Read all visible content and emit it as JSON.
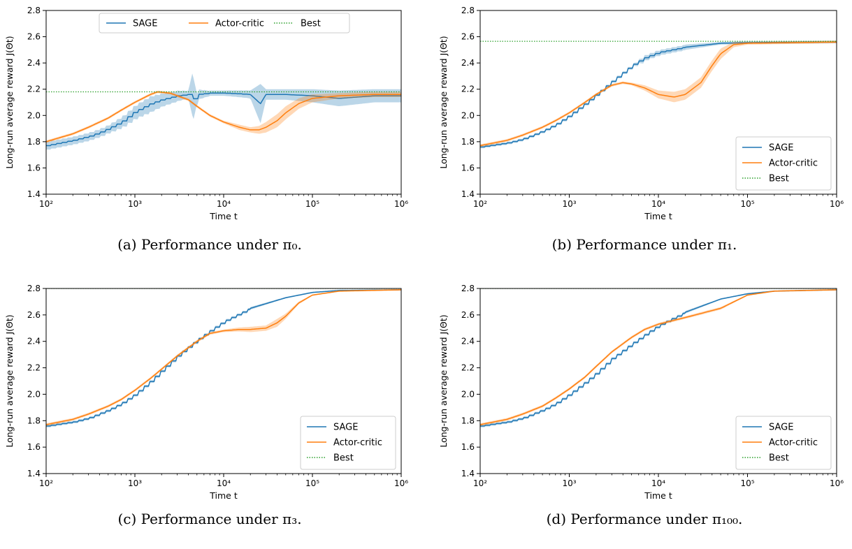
{
  "chart_data": [
    {
      "type": "line",
      "caption": "(a) Performance under π₀.",
      "xlabel": "Time t",
      "ylabel": "Long-run average reward J(Θt)",
      "xscale": "log",
      "xlim": [
        100,
        1000000
      ],
      "ylim": [
        1.4,
        2.8
      ],
      "xticks": [
        "10²",
        "10³",
        "10⁴",
        "10⁵",
        "10⁶"
      ],
      "yticks": [
        "1.4",
        "1.6",
        "1.8",
        "2.0",
        "2.2",
        "2.4",
        "2.6",
        "2.8"
      ],
      "legend_position": "top-center",
      "legend_layout": "horizontal",
      "series": [
        {
          "name": "SAGE",
          "color": "#1f77b4",
          "step": true,
          "x": [
            100,
            200,
            300,
            400,
            500,
            700,
            1000,
            1500,
            2000,
            3000,
            4000,
            4500,
            5000,
            7000,
            10000,
            20000,
            26000,
            30000,
            50000,
            100000,
            200000,
            500000,
            1000000
          ],
          "y": [
            1.77,
            1.81,
            1.84,
            1.87,
            1.9,
            1.95,
            2.03,
            2.09,
            2.12,
            2.15,
            2.16,
            2.12,
            2.16,
            2.17,
            2.17,
            2.16,
            2.09,
            2.16,
            2.16,
            2.15,
            2.13,
            2.15,
            2.15
          ],
          "band": [
            0.03,
            0.03,
            0.03,
            0.03,
            0.03,
            0.04,
            0.05,
            0.06,
            0.05,
            0.04,
            0.03,
            0.18,
            0.04,
            0.02,
            0.02,
            0.03,
            0.15,
            0.04,
            0.04,
            0.05,
            0.06,
            0.05,
            0.05
          ]
        },
        {
          "name": "Actor-critic",
          "color": "#ff7f0e",
          "x": [
            100,
            200,
            300,
            500,
            700,
            1000,
            1500,
            1800,
            2500,
            3000,
            4000,
            5000,
            7000,
            10000,
            15000,
            20000,
            25000,
            30000,
            40000,
            50000,
            70000,
            100000,
            200000,
            500000,
            1000000
          ],
          "y": [
            1.8,
            1.86,
            1.91,
            1.98,
            2.04,
            2.1,
            2.16,
            2.18,
            2.17,
            2.15,
            2.12,
            2.07,
            2.0,
            1.95,
            1.91,
            1.89,
            1.89,
            1.91,
            1.96,
            2.02,
            2.09,
            2.13,
            2.15,
            2.16,
            2.16
          ],
          "band": [
            0.01,
            0.01,
            0.01,
            0.01,
            0.01,
            0.01,
            0.01,
            0.01,
            0.01,
            0.01,
            0.01,
            0.01,
            0.01,
            0.01,
            0.02,
            0.02,
            0.03,
            0.04,
            0.05,
            0.05,
            0.04,
            0.03,
            0.02,
            0.02,
            0.02
          ]
        },
        {
          "name": "Best",
          "color": "#2ca02c",
          "style": "dotted",
          "y_constant": 2.18
        }
      ]
    },
    {
      "type": "line",
      "caption": "(b) Performance under π₁.",
      "xlabel": "Time t",
      "ylabel": "Long-run average reward J(Θt)",
      "xscale": "log",
      "xlim": [
        100,
        1000000
      ],
      "ylim": [
        1.4,
        2.8
      ],
      "xticks": [
        "10²",
        "10³",
        "10⁴",
        "10⁵",
        "10⁶"
      ],
      "yticks": [
        "1.4",
        "1.6",
        "1.8",
        "2.0",
        "2.2",
        "2.4",
        "2.6",
        "2.8"
      ],
      "legend_position": "lower-right",
      "legend_layout": "vertical",
      "series": [
        {
          "name": "SAGE",
          "color": "#1f77b4",
          "step": true,
          "x": [
            100,
            200,
            300,
            500,
            700,
            1000,
            1500,
            2000,
            3000,
            5000,
            7000,
            10000,
            20000,
            50000,
            100000,
            1000000
          ],
          "y": [
            1.76,
            1.79,
            1.82,
            1.88,
            1.93,
            2.0,
            2.09,
            2.16,
            2.26,
            2.38,
            2.44,
            2.48,
            2.52,
            2.55,
            2.555,
            2.56
          ],
          "band": [
            0.01,
            0.01,
            0.01,
            0.01,
            0.01,
            0.01,
            0.01,
            0.01,
            0.01,
            0.01,
            0.02,
            0.02,
            0.02,
            0.01,
            0.01,
            0.01
          ]
        },
        {
          "name": "Actor-critic",
          "color": "#ff7f0e",
          "x": [
            100,
            200,
            300,
            500,
            700,
            1000,
            1500,
            2000,
            3000,
            4000,
            5000,
            7000,
            10000,
            15000,
            20000,
            30000,
            40000,
            50000,
            70000,
            100000,
            1000000
          ],
          "y": [
            1.77,
            1.81,
            1.85,
            1.91,
            1.96,
            2.02,
            2.1,
            2.16,
            2.23,
            2.25,
            2.24,
            2.21,
            2.16,
            2.14,
            2.16,
            2.25,
            2.38,
            2.47,
            2.54,
            2.55,
            2.56
          ],
          "band": [
            0.01,
            0.01,
            0.01,
            0.01,
            0.01,
            0.01,
            0.01,
            0.01,
            0.01,
            0.01,
            0.01,
            0.02,
            0.03,
            0.04,
            0.04,
            0.04,
            0.04,
            0.04,
            0.02,
            0.01,
            0.01
          ]
        },
        {
          "name": "Best",
          "color": "#2ca02c",
          "style": "dotted",
          "y_constant": 2.565
        }
      ]
    },
    {
      "type": "line",
      "caption": "(c) Performance under π₃.",
      "xlabel": "Time t",
      "ylabel": "Long-run average reward J(Θt)",
      "xscale": "log",
      "xlim": [
        100,
        1000000
      ],
      "ylim": [
        1.4,
        2.8
      ],
      "xticks": [
        "10²",
        "10³",
        "10⁴",
        "10⁵",
        "10⁶"
      ],
      "yticks": [
        "1.4",
        "1.6",
        "1.8",
        "2.0",
        "2.2",
        "2.4",
        "2.6",
        "2.8"
      ],
      "legend_position": "lower-right",
      "legend_layout": "vertical",
      "series": [
        {
          "name": "SAGE",
          "color": "#1f77b4",
          "step": true,
          "x": [
            100,
            200,
            300,
            500,
            700,
            1000,
            1500,
            2000,
            3000,
            5000,
            7000,
            10000,
            20000,
            50000,
            100000,
            200000,
            1000000
          ],
          "y": [
            1.76,
            1.79,
            1.82,
            1.88,
            1.93,
            2.0,
            2.1,
            2.18,
            2.29,
            2.41,
            2.48,
            2.55,
            2.65,
            2.73,
            2.77,
            2.785,
            2.79
          ],
          "band": [
            0.01,
            0.01,
            0.01,
            0.01,
            0.01,
            0.01,
            0.01,
            0.01,
            0.01,
            0.01,
            0.01,
            0.01,
            0.01,
            0.005,
            0.005,
            0.005,
            0.005
          ]
        },
        {
          "name": "Actor-critic",
          "color": "#ff7f0e",
          "x": [
            100,
            200,
            300,
            500,
            700,
            1000,
            1500,
            2000,
            3000,
            5000,
            7000,
            10000,
            15000,
            20000,
            30000,
            40000,
            50000,
            70000,
            100000,
            200000,
            1000000
          ],
          "y": [
            1.77,
            1.81,
            1.85,
            1.91,
            1.96,
            2.03,
            2.12,
            2.19,
            2.29,
            2.4,
            2.46,
            2.48,
            2.49,
            2.49,
            2.5,
            2.54,
            2.59,
            2.69,
            2.75,
            2.78,
            2.79
          ],
          "band": [
            0.01,
            0.01,
            0.01,
            0.01,
            0.01,
            0.01,
            0.01,
            0.01,
            0.01,
            0.01,
            0.01,
            0.01,
            0.015,
            0.02,
            0.02,
            0.03,
            0.02,
            0.01,
            0.005,
            0.005,
            0.005
          ]
        },
        {
          "name": "Best",
          "color": "#2ca02c",
          "style": "dotted",
          "y_constant": 2.8
        }
      ]
    },
    {
      "type": "line",
      "caption": "(d) Performance under π₁₀₀.",
      "xlabel": "Time t",
      "ylabel": "Long-run average reward J(Θt)",
      "xscale": "log",
      "xlim": [
        100,
        1000000
      ],
      "ylim": [
        1.4,
        2.8
      ],
      "xticks": [
        "10²",
        "10³",
        "10⁴",
        "10⁵",
        "10⁶"
      ],
      "yticks": [
        "1.4",
        "1.6",
        "1.8",
        "2.0",
        "2.2",
        "2.4",
        "2.6",
        "2.8"
      ],
      "legend_position": "lower-right",
      "legend_layout": "vertical",
      "series": [
        {
          "name": "SAGE",
          "color": "#1f77b4",
          "step": true,
          "x": [
            100,
            200,
            300,
            500,
            700,
            1000,
            1500,
            2000,
            3000,
            5000,
            7000,
            10000,
            20000,
            50000,
            100000,
            200000,
            1000000
          ],
          "y": [
            1.76,
            1.79,
            1.82,
            1.88,
            1.93,
            2.0,
            2.09,
            2.16,
            2.27,
            2.38,
            2.45,
            2.52,
            2.62,
            2.72,
            2.76,
            2.78,
            2.79
          ],
          "band": [
            0.01,
            0.01,
            0.01,
            0.01,
            0.01,
            0.01,
            0.01,
            0.01,
            0.01,
            0.01,
            0.01,
            0.01,
            0.01,
            0.005,
            0.005,
            0.005,
            0.005
          ]
        },
        {
          "name": "Actor-critic",
          "color": "#ff7f0e",
          "x": [
            100,
            200,
            300,
            500,
            700,
            1000,
            1500,
            2000,
            3000,
            5000,
            7000,
            10000,
            20000,
            50000,
            100000,
            200000,
            1000000
          ],
          "y": [
            1.77,
            1.81,
            1.85,
            1.91,
            1.97,
            2.04,
            2.13,
            2.21,
            2.32,
            2.43,
            2.49,
            2.53,
            2.58,
            2.65,
            2.75,
            2.78,
            2.79
          ],
          "band": [
            0.01,
            0.01,
            0.01,
            0.01,
            0.01,
            0.01,
            0.01,
            0.01,
            0.01,
            0.01,
            0.01,
            0.01,
            0.01,
            0.01,
            0.005,
            0.005,
            0.005
          ]
        },
        {
          "name": "Best",
          "color": "#2ca02c",
          "style": "dotted",
          "y_constant": 2.8
        }
      ]
    }
  ]
}
